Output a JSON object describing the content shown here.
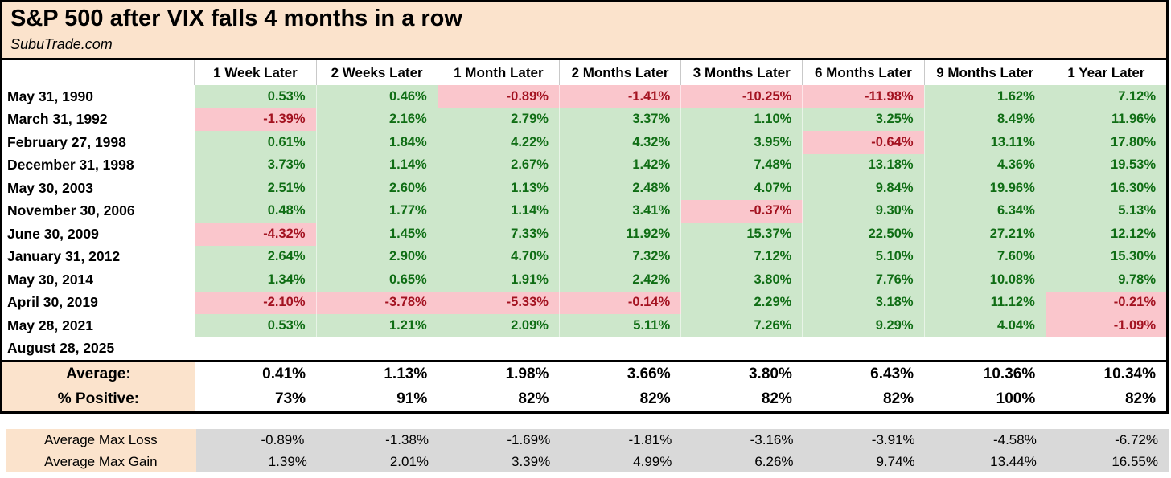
{
  "title": "S&P 500 after VIX falls 4 months in a row",
  "subtitle": "SubuTrade.com",
  "chart_data": {
    "type": "table",
    "title": "S&P 500 after VIX falls 4 months in a row",
    "columns": [
      "1 Week Later",
      "2 Weeks Later",
      "1 Month Later",
      "2 Months Later",
      "3 Months Later",
      "6 Months Later",
      "9 Months Later",
      "1 Year Later"
    ],
    "rows": [
      {
        "date": "May 31, 1990",
        "values": [
          "0.53%",
          "0.46%",
          "-0.89%",
          "-1.41%",
          "-10.25%",
          "-11.98%",
          "1.62%",
          "7.12%"
        ]
      },
      {
        "date": "March 31, 1992",
        "values": [
          "-1.39%",
          "2.16%",
          "2.79%",
          "3.37%",
          "1.10%",
          "3.25%",
          "8.49%",
          "11.96%"
        ]
      },
      {
        "date": "February 27, 1998",
        "values": [
          "0.61%",
          "1.84%",
          "4.22%",
          "4.32%",
          "3.95%",
          "-0.64%",
          "13.11%",
          "17.80%"
        ]
      },
      {
        "date": "December 31, 1998",
        "values": [
          "3.73%",
          "1.14%",
          "2.67%",
          "1.42%",
          "7.48%",
          "13.18%",
          "4.36%",
          "19.53%"
        ]
      },
      {
        "date": "May 30, 2003",
        "values": [
          "2.51%",
          "2.60%",
          "1.13%",
          "2.48%",
          "4.07%",
          "9.84%",
          "19.96%",
          "16.30%"
        ]
      },
      {
        "date": "November 30, 2006",
        "values": [
          "0.48%",
          "1.77%",
          "1.14%",
          "3.41%",
          "-0.37%",
          "9.30%",
          "6.34%",
          "5.13%"
        ]
      },
      {
        "date": "June 30, 2009",
        "values": [
          "-4.32%",
          "1.45%",
          "7.33%",
          "11.92%",
          "15.37%",
          "22.50%",
          "27.21%",
          "12.12%"
        ]
      },
      {
        "date": "January 31, 2012",
        "values": [
          "2.64%",
          "2.90%",
          "4.70%",
          "7.32%",
          "7.12%",
          "5.10%",
          "7.60%",
          "15.30%"
        ]
      },
      {
        "date": "May 30, 2014",
        "values": [
          "1.34%",
          "0.65%",
          "1.91%",
          "2.42%",
          "3.80%",
          "7.76%",
          "10.08%",
          "9.78%"
        ]
      },
      {
        "date": "April 30, 2019",
        "values": [
          "-2.10%",
          "-3.78%",
          "-5.33%",
          "-0.14%",
          "2.29%",
          "3.18%",
          "11.12%",
          "-0.21%"
        ]
      },
      {
        "date": "May 28, 2021",
        "values": [
          "0.53%",
          "1.21%",
          "2.09%",
          "5.11%",
          "7.26%",
          "9.29%",
          "4.04%",
          "-1.09%"
        ]
      },
      {
        "date": "August 28, 2025",
        "values": [
          "",
          "",
          "",
          "",
          "",
          "",
          "",
          ""
        ]
      }
    ],
    "summary_rows": [
      {
        "label": "Average:",
        "values": [
          "0.41%",
          "1.13%",
          "1.98%",
          "3.66%",
          "3.80%",
          "6.43%",
          "10.36%",
          "10.34%"
        ]
      },
      {
        "label": "% Positive:",
        "values": [
          "73%",
          "91%",
          "82%",
          "82%",
          "82%",
          "82%",
          "100%",
          "82%"
        ]
      }
    ],
    "extreme_rows": [
      {
        "label": "Average Max Loss",
        "values": [
          "-0.89%",
          "-1.38%",
          "-1.69%",
          "-1.81%",
          "-3.16%",
          "-3.91%",
          "-4.58%",
          "-6.72%"
        ]
      },
      {
        "label": "Average Max Gain",
        "values": [
          "1.39%",
          "2.01%",
          "3.39%",
          "4.99%",
          "6.26%",
          "9.74%",
          "13.44%",
          "16.55%"
        ]
      }
    ]
  },
  "colors": {
    "title_bg": "#fbe3cc",
    "positive_bg": "#cde7cb",
    "negative_bg": "#fac6cc",
    "positive_text": "#0f6d14",
    "negative_text": "#a31220",
    "extremes_value_bg": "#d9d9d9"
  }
}
